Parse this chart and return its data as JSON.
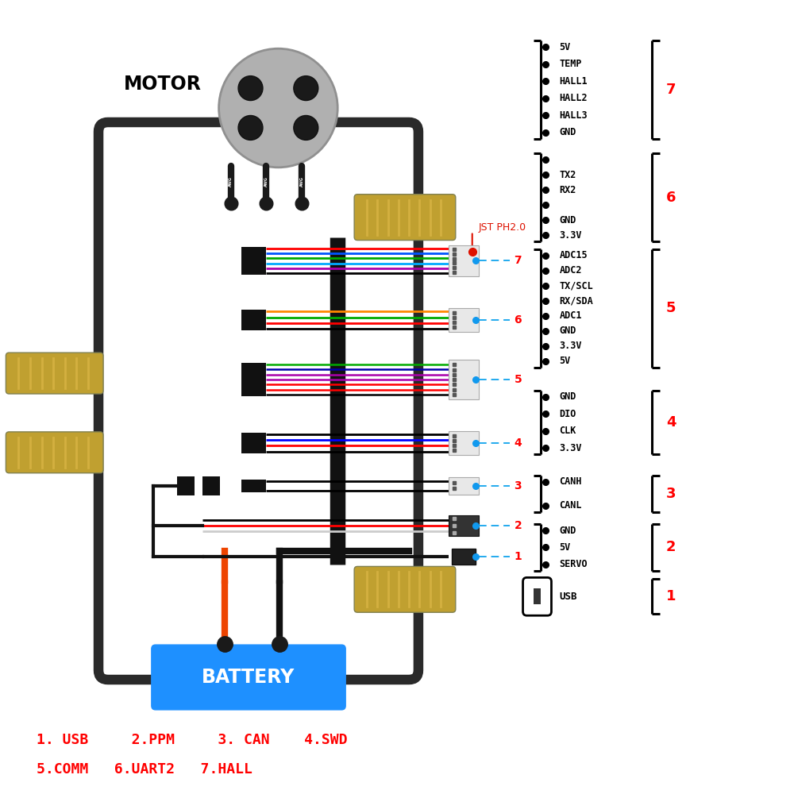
{
  "bg_color": "#ffffff",
  "motor_label": "MOTOR",
  "battery_label": "BATTERY",
  "battery_color": "#1e90ff",
  "battery_text_color": "#ffffff",
  "bottom_label_color": "#ff0000",
  "esc_edge_color": "#2a2a2a",
  "esc_face_color": "#ffffff",
  "connector7_wires": [
    "#ff0000",
    "#0055ff",
    "#00aa00",
    "#00aaff",
    "#aa00aa",
    "#000000"
  ],
  "connector6_wires": [
    "#ff8800",
    "#00aa00",
    "#ff0000",
    "#000000"
  ],
  "connector5_wires": [
    "#00aa00",
    "#0000ff",
    "#aa00aa",
    "#ff0000",
    "#ff0000",
    "#000000"
  ],
  "connector4_wires": [
    "#000000",
    "#0000ff",
    "#ff0000",
    "#000000"
  ],
  "connector3_wires": [
    "#000000",
    "#000000"
  ],
  "connector2_wires": [
    "#000000",
    "#ff0000",
    "#cccccc"
  ],
  "connector1_wires": [
    "#111111"
  ],
  "right_groups": [
    {
      "id": 7,
      "pins": [
        "5V",
        "TEMP",
        "HALL1",
        "HALL2",
        "HALL3",
        "GND"
      ],
      "n_dots": 6
    },
    {
      "id": 6,
      "pins": [
        "",
        "TX2",
        "RX2",
        "",
        "GND",
        "3.3V"
      ],
      "n_dots": 6
    },
    {
      "id": 5,
      "pins": [
        "ADC15",
        "ADC2",
        "TX/SCL",
        "RX/SDA",
        "ADC1",
        "GND",
        "3.3V",
        "5V"
      ],
      "n_dots": 8
    },
    {
      "id": 4,
      "pins": [
        "GND",
        "DIO",
        "CLK",
        "3.3V"
      ],
      "n_dots": 4
    },
    {
      "id": 3,
      "pins": [
        "CANH",
        "CANL"
      ],
      "n_dots": 2
    },
    {
      "id": 2,
      "pins": [
        "GND",
        "5V",
        "SERVO"
      ],
      "n_dots": 3
    },
    {
      "id": 1,
      "pins": [
        "USB"
      ],
      "n_dots": 0
    }
  ]
}
